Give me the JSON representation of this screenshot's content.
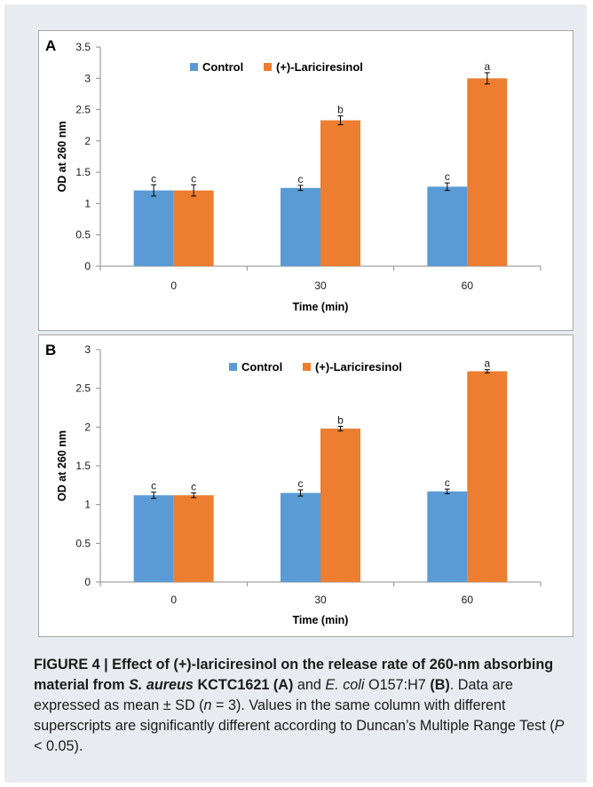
{
  "chart_data": [
    {
      "type": "bar",
      "panel_label": "A",
      "categories": [
        "0",
        "30",
        "60"
      ],
      "series": [
        {
          "name": "Control",
          "color": "#5b9bd5",
          "values": [
            1.21,
            1.25,
            1.27
          ],
          "errors": [
            0.09,
            0.04,
            0.06
          ],
          "labels": [
            "c",
            "c",
            "c"
          ]
        },
        {
          "name": "(+)-Lariciresinol",
          "color": "#ed7d31",
          "values": [
            1.21,
            2.33,
            3.0
          ],
          "errors": [
            0.09,
            0.07,
            0.09
          ],
          "labels": [
            "c",
            "b",
            "a"
          ]
        }
      ],
      "xlabel": "Time (min)",
      "ylabel": "OD at 260 nm",
      "ylim": [
        0,
        3.5
      ],
      "yticks": [
        "0",
        "0.5",
        "1",
        "1.5",
        "2",
        "2.5",
        "3",
        "3.5"
      ],
      "grid": false,
      "legend_position": "top"
    },
    {
      "type": "bar",
      "panel_label": "B",
      "categories": [
        "0",
        "30",
        "60"
      ],
      "series": [
        {
          "name": "Control",
          "color": "#5b9bd5",
          "values": [
            1.12,
            1.15,
            1.17
          ],
          "errors": [
            0.04,
            0.04,
            0.03
          ],
          "labels": [
            "c",
            "c",
            "c"
          ]
        },
        {
          "name": "(+)-Lariciresinol",
          "color": "#ed7d31",
          "values": [
            1.12,
            1.98,
            2.72
          ],
          "errors": [
            0.03,
            0.03,
            0.02
          ],
          "labels": [
            "c",
            "b",
            "a"
          ]
        }
      ],
      "xlabel": "Time (min)",
      "ylabel": "OD at 260 nm",
      "ylim": [
        0,
        3
      ],
      "yticks": [
        "0",
        "0.5",
        "1",
        "1.5",
        "2",
        "2.5",
        "3"
      ],
      "grid": false,
      "legend_position": "top"
    }
  ],
  "caption": {
    "title_1": "FIGURE 4 | Effect of (+)-lariciresinol on the release rate of 260-nm absorbing material from ",
    "title_species": "S. aureus",
    "title_2": " KCTC1621 ",
    "title_a": "(A)",
    "text_1": " and ",
    "ecoli": "E. coli",
    "text_2": " O157:H7 ",
    "title_b": "(B)",
    "text_3": ". Data are expressed as mean ± SD (",
    "n_var": "n",
    "text_4": " = 3). Values in the same column with different superscripts are significantly different according to Duncan’s Multiple Range Test (",
    "p_var": "P",
    "text_5": " < 0.05)."
  }
}
